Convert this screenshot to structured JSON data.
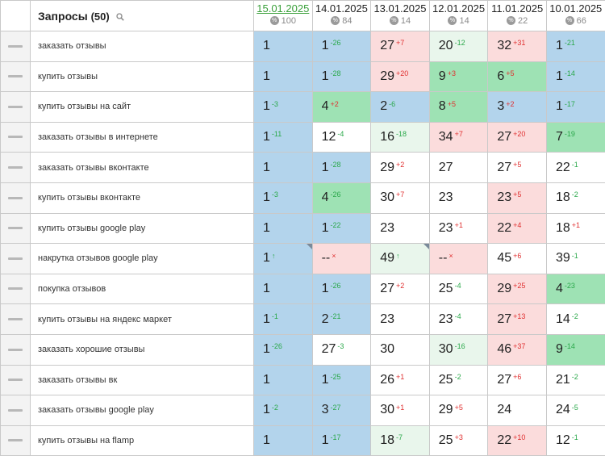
{
  "header": {
    "query_title": "Запросы",
    "query_count": "(50)",
    "dates": [
      {
        "date": "15.01.2025",
        "num": "100",
        "active": true
      },
      {
        "date": "14.01.2025",
        "num": "84",
        "active": false
      },
      {
        "date": "13.01.2025",
        "num": "14",
        "active": false
      },
      {
        "date": "12.01.2025",
        "num": "14",
        "active": false
      },
      {
        "date": "11.01.2025",
        "num": "22",
        "active": false
      },
      {
        "date": "10.01.2025",
        "num": "66",
        "active": false
      }
    ]
  },
  "colors": {
    "blue": "#b3d4ec",
    "green": "#9ee2b4",
    "red": "#fbdcdc",
    "light_green": "#e9f6ec",
    "up_text": "#2aa84a",
    "down_text": "#e03030",
    "active_date": "#3aa03a"
  },
  "rows": [
    {
      "query": "заказать отзывы",
      "cells": [
        {
          "v": "1",
          "d": "",
          "dir": "",
          "bg": "blue"
        },
        {
          "v": "1",
          "d": "-26",
          "dir": "up",
          "bg": "blue"
        },
        {
          "v": "27",
          "d": "+7",
          "dir": "down",
          "bg": "red"
        },
        {
          "v": "20",
          "d": "-12",
          "dir": "up",
          "bg": "lgreen"
        },
        {
          "v": "32",
          "d": "+31",
          "dir": "down",
          "bg": "red"
        },
        {
          "v": "1",
          "d": "-21",
          "dir": "up",
          "bg": "blue"
        }
      ]
    },
    {
      "query": "купить отзывы",
      "cells": [
        {
          "v": "1",
          "d": "",
          "dir": "",
          "bg": "blue"
        },
        {
          "v": "1",
          "d": "-28",
          "dir": "up",
          "bg": "blue"
        },
        {
          "v": "29",
          "d": "+20",
          "dir": "down",
          "bg": "red"
        },
        {
          "v": "9",
          "d": "+3",
          "dir": "down",
          "bg": "green"
        },
        {
          "v": "6",
          "d": "+5",
          "dir": "down",
          "bg": "green"
        },
        {
          "v": "1",
          "d": "-14",
          "dir": "up",
          "bg": "blue"
        }
      ]
    },
    {
      "query": "купить отзывы на сайт",
      "cells": [
        {
          "v": "1",
          "d": "-3",
          "dir": "up",
          "bg": "blue"
        },
        {
          "v": "4",
          "d": "+2",
          "dir": "down",
          "bg": "green"
        },
        {
          "v": "2",
          "d": "-6",
          "dir": "up",
          "bg": "blue"
        },
        {
          "v": "8",
          "d": "+5",
          "dir": "down",
          "bg": "green"
        },
        {
          "v": "3",
          "d": "+2",
          "dir": "down",
          "bg": "blue"
        },
        {
          "v": "1",
          "d": "-17",
          "dir": "up",
          "bg": "blue"
        }
      ]
    },
    {
      "query": "заказать отзывы в интернете",
      "cells": [
        {
          "v": "1",
          "d": "-11",
          "dir": "up",
          "bg": "blue"
        },
        {
          "v": "12",
          "d": "-4",
          "dir": "up",
          "bg": "white"
        },
        {
          "v": "16",
          "d": "-18",
          "dir": "up",
          "bg": "lgreen"
        },
        {
          "v": "34",
          "d": "+7",
          "dir": "down",
          "bg": "red"
        },
        {
          "v": "27",
          "d": "+20",
          "dir": "down",
          "bg": "red"
        },
        {
          "v": "7",
          "d": "-19",
          "dir": "up",
          "bg": "green"
        }
      ]
    },
    {
      "query": "заказать отзывы вконтакте",
      "cells": [
        {
          "v": "1",
          "d": "",
          "dir": "",
          "bg": "blue"
        },
        {
          "v": "1",
          "d": "-28",
          "dir": "up",
          "bg": "blue"
        },
        {
          "v": "29",
          "d": "+2",
          "dir": "down",
          "bg": "white"
        },
        {
          "v": "27",
          "d": "",
          "dir": "",
          "bg": "white"
        },
        {
          "v": "27",
          "d": "+5",
          "dir": "down",
          "bg": "white"
        },
        {
          "v": "22",
          "d": "-1",
          "dir": "up",
          "bg": "white"
        }
      ]
    },
    {
      "query": "купить отзывы вконтакте",
      "cells": [
        {
          "v": "1",
          "d": "-3",
          "dir": "up",
          "bg": "blue"
        },
        {
          "v": "4",
          "d": "-26",
          "dir": "up",
          "bg": "green"
        },
        {
          "v": "30",
          "d": "+7",
          "dir": "down",
          "bg": "white"
        },
        {
          "v": "23",
          "d": "",
          "dir": "",
          "bg": "white"
        },
        {
          "v": "23",
          "d": "+5",
          "dir": "down",
          "bg": "red"
        },
        {
          "v": "18",
          "d": "-2",
          "dir": "up",
          "bg": "white"
        }
      ]
    },
    {
      "query": "купить отзывы google play",
      "cells": [
        {
          "v": "1",
          "d": "",
          "dir": "",
          "bg": "blue"
        },
        {
          "v": "1",
          "d": "-22",
          "dir": "up",
          "bg": "blue"
        },
        {
          "v": "23",
          "d": "",
          "dir": "",
          "bg": "white"
        },
        {
          "v": "23",
          "d": "+1",
          "dir": "down",
          "bg": "white"
        },
        {
          "v": "22",
          "d": "+4",
          "dir": "down",
          "bg": "red"
        },
        {
          "v": "18",
          "d": "+1",
          "dir": "down",
          "bg": "white"
        }
      ]
    },
    {
      "query": "накрутка отзывов google play",
      "cells": [
        {
          "v": "1",
          "d": "↑",
          "dir": "up",
          "bg": "blue",
          "corner": true
        },
        {
          "v": "--",
          "d": "×",
          "dir": "down",
          "bg": "red"
        },
        {
          "v": "49",
          "d": "↑",
          "dir": "up",
          "bg": "lgreen",
          "corner": true
        },
        {
          "v": "--",
          "d": "×",
          "dir": "down",
          "bg": "red"
        },
        {
          "v": "45",
          "d": "+6",
          "dir": "down",
          "bg": "white"
        },
        {
          "v": "39",
          "d": "-1",
          "dir": "up",
          "bg": "white"
        }
      ]
    },
    {
      "query": "покупка отзывов",
      "cells": [
        {
          "v": "1",
          "d": "",
          "dir": "",
          "bg": "blue"
        },
        {
          "v": "1",
          "d": "-26",
          "dir": "up",
          "bg": "blue"
        },
        {
          "v": "27",
          "d": "+2",
          "dir": "down",
          "bg": "white"
        },
        {
          "v": "25",
          "d": "-4",
          "dir": "up",
          "bg": "white"
        },
        {
          "v": "29",
          "d": "+25",
          "dir": "down",
          "bg": "red"
        },
        {
          "v": "4",
          "d": "-23",
          "dir": "up",
          "bg": "green"
        }
      ]
    },
    {
      "query": "купить отзывы на яндекс маркет",
      "cells": [
        {
          "v": "1",
          "d": "-1",
          "dir": "up",
          "bg": "blue"
        },
        {
          "v": "2",
          "d": "-21",
          "dir": "up",
          "bg": "blue"
        },
        {
          "v": "23",
          "d": "",
          "dir": "",
          "bg": "white"
        },
        {
          "v": "23",
          "d": "-4",
          "dir": "up",
          "bg": "white"
        },
        {
          "v": "27",
          "d": "+13",
          "dir": "down",
          "bg": "red"
        },
        {
          "v": "14",
          "d": "-2",
          "dir": "up",
          "bg": "white"
        }
      ]
    },
    {
      "query": "заказать хорошие отзывы",
      "cells": [
        {
          "v": "1",
          "d": "-26",
          "dir": "up",
          "bg": "blue"
        },
        {
          "v": "27",
          "d": "-3",
          "dir": "up",
          "bg": "white"
        },
        {
          "v": "30",
          "d": "",
          "dir": "",
          "bg": "white"
        },
        {
          "v": "30",
          "d": "-16",
          "dir": "up",
          "bg": "lgreen"
        },
        {
          "v": "46",
          "d": "+37",
          "dir": "down",
          "bg": "red"
        },
        {
          "v": "9",
          "d": "-14",
          "dir": "up",
          "bg": "green"
        }
      ]
    },
    {
      "query": "заказать отзывы вк",
      "cells": [
        {
          "v": "1",
          "d": "",
          "dir": "",
          "bg": "blue"
        },
        {
          "v": "1",
          "d": "-25",
          "dir": "up",
          "bg": "blue"
        },
        {
          "v": "26",
          "d": "+1",
          "dir": "down",
          "bg": "white"
        },
        {
          "v": "25",
          "d": "-2",
          "dir": "up",
          "bg": "white"
        },
        {
          "v": "27",
          "d": "+6",
          "dir": "down",
          "bg": "white"
        },
        {
          "v": "21",
          "d": "-2",
          "dir": "up",
          "bg": "white"
        }
      ]
    },
    {
      "query": "заказать отзывы google play",
      "cells": [
        {
          "v": "1",
          "d": "-2",
          "dir": "up",
          "bg": "blue"
        },
        {
          "v": "3",
          "d": "-27",
          "dir": "up",
          "bg": "blue"
        },
        {
          "v": "30",
          "d": "+1",
          "dir": "down",
          "bg": "white"
        },
        {
          "v": "29",
          "d": "+5",
          "dir": "down",
          "bg": "white"
        },
        {
          "v": "24",
          "d": "",
          "dir": "",
          "bg": "white"
        },
        {
          "v": "24",
          "d": "-5",
          "dir": "up",
          "bg": "white"
        }
      ]
    },
    {
      "query": "купить отзывы на flamp",
      "cells": [
        {
          "v": "1",
          "d": "",
          "dir": "",
          "bg": "blue"
        },
        {
          "v": "1",
          "d": "-17",
          "dir": "up",
          "bg": "blue"
        },
        {
          "v": "18",
          "d": "-7",
          "dir": "up",
          "bg": "lgreen"
        },
        {
          "v": "25",
          "d": "+3",
          "dir": "down",
          "bg": "white"
        },
        {
          "v": "22",
          "d": "+10",
          "dir": "down",
          "bg": "red"
        },
        {
          "v": "12",
          "d": "-1",
          "dir": "up",
          "bg": "white"
        }
      ]
    }
  ]
}
